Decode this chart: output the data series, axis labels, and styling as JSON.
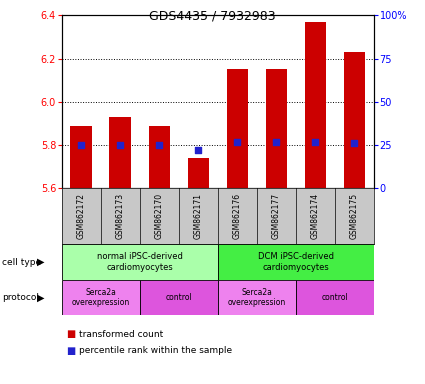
{
  "title": "GDS4435 / 7932983",
  "samples": [
    "GSM862172",
    "GSM862173",
    "GSM862170",
    "GSM862171",
    "GSM862176",
    "GSM862177",
    "GSM862174",
    "GSM862175"
  ],
  "bar_values": [
    5.89,
    5.93,
    5.89,
    5.74,
    6.15,
    6.15,
    6.37,
    6.23
  ],
  "percentile_values": [
    25,
    25,
    25,
    22,
    27,
    27,
    27,
    26
  ],
  "ylim_left": [
    5.6,
    6.4
  ],
  "ylim_right": [
    0,
    100
  ],
  "yticks_left": [
    5.6,
    5.8,
    6.0,
    6.2,
    6.4
  ],
  "yticks_right": [
    0,
    25,
    50,
    75,
    100
  ],
  "ytick_labels_right": [
    "0",
    "25",
    "50",
    "75",
    "100%"
  ],
  "bar_color": "#cc0000",
  "percentile_color": "#2222cc",
  "bar_bottom": 5.6,
  "cell_type_groups": [
    {
      "label": "normal iPSC-derived\ncardiomyocytes",
      "start": 0,
      "end": 4,
      "color": "#aaffaa"
    },
    {
      "label": "DCM iPSC-derived\ncardiomyocytes",
      "start": 4,
      "end": 8,
      "color": "#44ee44"
    }
  ],
  "protocol_groups": [
    {
      "label": "Serca2a\noverexpression",
      "start": 0,
      "end": 2,
      "color": "#ee82ee"
    },
    {
      "label": "control",
      "start": 2,
      "end": 4,
      "color": "#dd55dd"
    },
    {
      "label": "Serca2a\noverexpression",
      "start": 4,
      "end": 6,
      "color": "#ee82ee"
    },
    {
      "label": "control",
      "start": 6,
      "end": 8,
      "color": "#dd55dd"
    }
  ],
  "legend_bar_label": "transformed count",
  "legend_pct_label": "percentile rank within the sample",
  "cell_type_label": "cell type",
  "protocol_label": "protocol",
  "sample_bg": "#c8c8c8",
  "plot_bg": "white"
}
